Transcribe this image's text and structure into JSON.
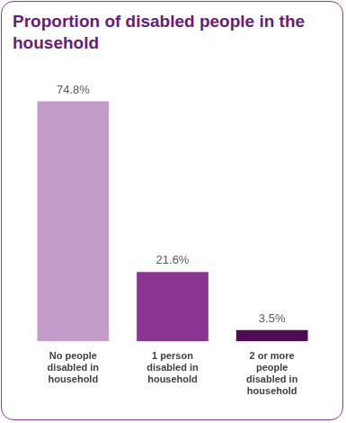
{
  "chart_data": {
    "type": "bar",
    "title": "Proportion of disabled people in the household",
    "categories": [
      "No people disabled in household",
      "1 person disabled in household",
      "2 or more people disabled in household"
    ],
    "values": [
      74.8,
      21.6,
      3.5
    ],
    "value_labels": [
      "74.8%",
      "21.6%",
      "3.5%"
    ],
    "colors": [
      "#c39bc9",
      "#8b3592",
      "#4f0a55"
    ],
    "data_labels": true,
    "tick_labels": "x",
    "grid": false
  }
}
